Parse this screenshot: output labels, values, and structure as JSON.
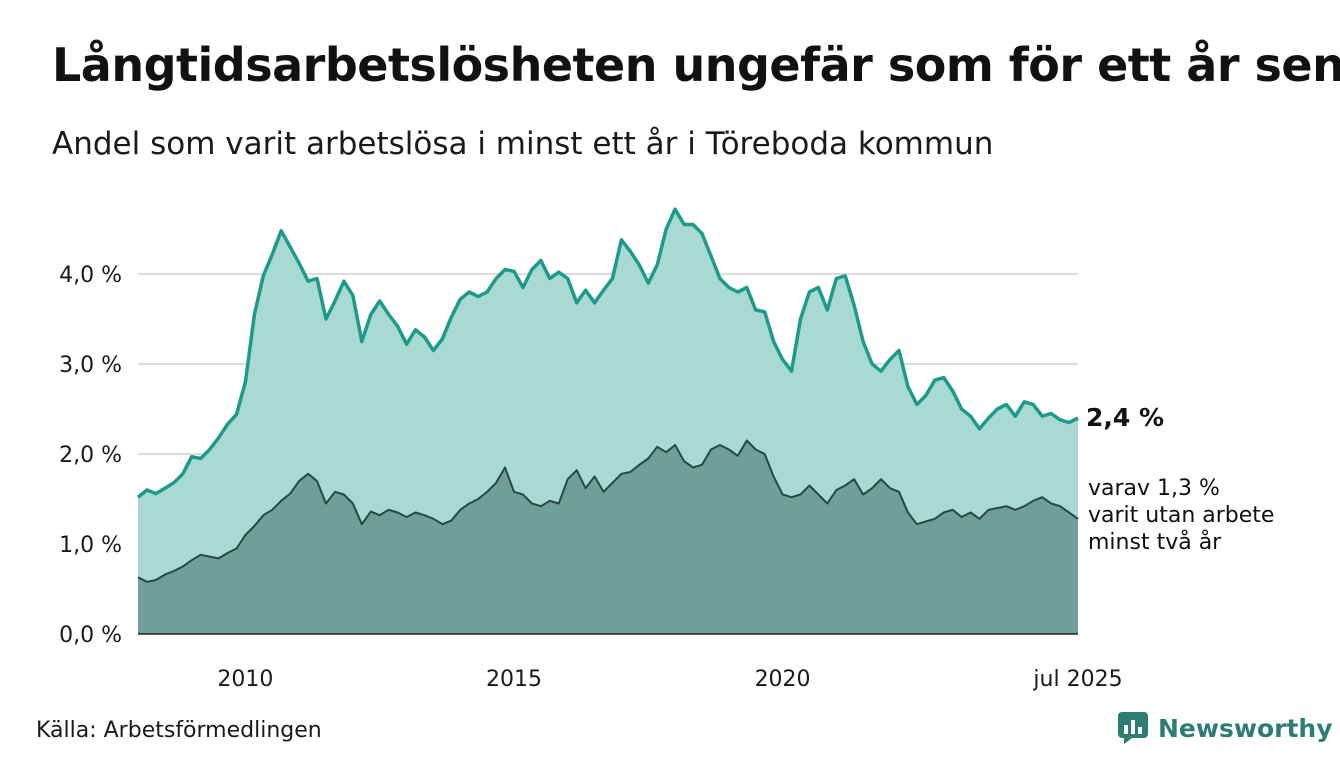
{
  "title": "Långtidsarbetslösheten ungefär som för ett år sen",
  "subtitle": "Andel som varit arbetslösa i minst ett år i Töreboda kommun",
  "source": "Källa: Arbetsförmedlingen",
  "brand": {
    "name": "Newsworthy",
    "icon": "bar-chart-logo-icon"
  },
  "colors": {
    "series1_fill": "#a8d9d2",
    "series1_line": "#1e9a8a",
    "series2_fill": "#6f9f97",
    "series2_line": "#254a44",
    "grid": "#dcdcdc",
    "brand": "#2e7d75"
  },
  "chart_data": {
    "type": "area",
    "title": "Långtidsarbetslösheten ungefär som för ett år sen",
    "subtitle": "Andel som varit arbetslösa i minst ett år i Töreboda kommun",
    "xlabel": "",
    "ylabel": "",
    "ylim": [
      0,
      4.8
    ],
    "xlim": [
      "2008-01",
      "2025-07"
    ],
    "y_ticks": [
      {
        "value": 0,
        "label": "0,0 %"
      },
      {
        "value": 1,
        "label": "1,0 %"
      },
      {
        "value": 2,
        "label": "2,0 %"
      },
      {
        "value": 3,
        "label": "3,0 %"
      },
      {
        "value": 4,
        "label": "4,0 %"
      }
    ],
    "x_ticks": [
      {
        "value": "2010-01",
        "label": "2010"
      },
      {
        "value": "2015-01",
        "label": "2015"
      },
      {
        "value": "2020-01",
        "label": "2020"
      },
      {
        "value": "2025-07",
        "label": "jul 2025"
      }
    ],
    "grid": true,
    "series": [
      {
        "name": "",
        "end_label": "2,4 %",
        "points": [
          [
            "2008-01",
            1.52
          ],
          [
            "2008-03",
            1.6
          ],
          [
            "2008-05",
            1.56
          ],
          [
            "2008-07",
            1.62
          ],
          [
            "2008-09",
            1.68
          ],
          [
            "2008-11",
            1.78
          ],
          [
            "2009-01",
            1.97
          ],
          [
            "2009-03",
            1.95
          ],
          [
            "2009-05",
            2.05
          ],
          [
            "2009-07",
            2.18
          ],
          [
            "2009-09",
            2.33
          ],
          [
            "2009-11",
            2.44
          ],
          [
            "2010-01",
            2.8
          ],
          [
            "2010-03",
            3.55
          ],
          [
            "2010-05",
            3.98
          ],
          [
            "2010-07",
            4.22
          ],
          [
            "2010-09",
            4.48
          ],
          [
            "2010-11",
            4.3
          ],
          [
            "2011-01",
            4.12
          ],
          [
            "2011-03",
            3.92
          ],
          [
            "2011-05",
            3.95
          ],
          [
            "2011-07",
            3.5
          ],
          [
            "2011-09",
            3.7
          ],
          [
            "2011-11",
            3.92
          ],
          [
            "2012-01",
            3.76
          ],
          [
            "2012-03",
            3.25
          ],
          [
            "2012-05",
            3.55
          ],
          [
            "2012-07",
            3.7
          ],
          [
            "2012-09",
            3.55
          ],
          [
            "2012-11",
            3.42
          ],
          [
            "2013-01",
            3.22
          ],
          [
            "2013-03",
            3.38
          ],
          [
            "2013-05",
            3.3
          ],
          [
            "2013-07",
            3.15
          ],
          [
            "2013-09",
            3.28
          ],
          [
            "2013-11",
            3.52
          ],
          [
            "2014-01",
            3.72
          ],
          [
            "2014-03",
            3.8
          ],
          [
            "2014-05",
            3.75
          ],
          [
            "2014-07",
            3.8
          ],
          [
            "2014-09",
            3.95
          ],
          [
            "2014-11",
            4.05
          ],
          [
            "2015-01",
            4.03
          ],
          [
            "2015-03",
            3.85
          ],
          [
            "2015-05",
            4.05
          ],
          [
            "2015-07",
            4.15
          ],
          [
            "2015-09",
            3.95
          ],
          [
            "2015-11",
            4.02
          ],
          [
            "2016-01",
            3.95
          ],
          [
            "2016-03",
            3.68
          ],
          [
            "2016-05",
            3.82
          ],
          [
            "2016-07",
            3.68
          ],
          [
            "2016-09",
            3.82
          ],
          [
            "2016-11",
            3.95
          ],
          [
            "2017-01",
            4.38
          ],
          [
            "2017-03",
            4.25
          ],
          [
            "2017-05",
            4.1
          ],
          [
            "2017-07",
            3.9
          ],
          [
            "2017-09",
            4.1
          ],
          [
            "2017-11",
            4.5
          ],
          [
            "2018-01",
            4.72
          ],
          [
            "2018-03",
            4.55
          ],
          [
            "2018-05",
            4.55
          ],
          [
            "2018-07",
            4.45
          ],
          [
            "2018-09",
            4.2
          ],
          [
            "2018-11",
            3.95
          ],
          [
            "2019-01",
            3.85
          ],
          [
            "2019-03",
            3.8
          ],
          [
            "2019-05",
            3.85
          ],
          [
            "2019-07",
            3.6
          ],
          [
            "2019-09",
            3.58
          ],
          [
            "2019-11",
            3.25
          ],
          [
            "2020-01",
            3.05
          ],
          [
            "2020-03",
            2.92
          ],
          [
            "2020-05",
            3.5
          ],
          [
            "2020-07",
            3.8
          ],
          [
            "2020-09",
            3.85
          ],
          [
            "2020-11",
            3.6
          ],
          [
            "2021-01",
            3.95
          ],
          [
            "2021-03",
            3.98
          ],
          [
            "2021-05",
            3.65
          ],
          [
            "2021-07",
            3.25
          ],
          [
            "2021-09",
            3.0
          ],
          [
            "2021-11",
            2.92
          ],
          [
            "2022-01",
            3.05
          ],
          [
            "2022-03",
            3.15
          ],
          [
            "2022-05",
            2.75
          ],
          [
            "2022-07",
            2.55
          ],
          [
            "2022-09",
            2.65
          ],
          [
            "2022-11",
            2.82
          ],
          [
            "2023-01",
            2.85
          ],
          [
            "2023-03",
            2.7
          ],
          [
            "2023-05",
            2.5
          ],
          [
            "2023-07",
            2.42
          ],
          [
            "2023-09",
            2.28
          ],
          [
            "2023-11",
            2.4
          ],
          [
            "2024-01",
            2.5
          ],
          [
            "2024-03",
            2.55
          ],
          [
            "2024-05",
            2.42
          ],
          [
            "2024-07",
            2.58
          ],
          [
            "2024-09",
            2.55
          ],
          [
            "2024-11",
            2.42
          ],
          [
            "2025-01",
            2.45
          ],
          [
            "2025-03",
            2.38
          ],
          [
            "2025-05",
            2.35
          ],
          [
            "2025-07",
            2.4
          ]
        ]
      },
      {
        "name": "",
        "end_label": [
          "varav 1,3 %",
          "varit utan arbete",
          "minst två år"
        ],
        "points": [
          [
            "2008-01",
            0.63
          ],
          [
            "2008-03",
            0.58
          ],
          [
            "2008-05",
            0.6
          ],
          [
            "2008-07",
            0.66
          ],
          [
            "2008-09",
            0.7
          ],
          [
            "2008-11",
            0.75
          ],
          [
            "2009-01",
            0.82
          ],
          [
            "2009-03",
            0.88
          ],
          [
            "2009-05",
            0.86
          ],
          [
            "2009-07",
            0.84
          ],
          [
            "2009-09",
            0.9
          ],
          [
            "2009-11",
            0.95
          ],
          [
            "2010-01",
            1.1
          ],
          [
            "2010-03",
            1.2
          ],
          [
            "2010-05",
            1.32
          ],
          [
            "2010-07",
            1.38
          ],
          [
            "2010-09",
            1.48
          ],
          [
            "2010-11",
            1.56
          ],
          [
            "2011-01",
            1.7
          ],
          [
            "2011-03",
            1.78
          ],
          [
            "2011-05",
            1.7
          ],
          [
            "2011-07",
            1.45
          ],
          [
            "2011-09",
            1.58
          ],
          [
            "2011-11",
            1.55
          ],
          [
            "2012-01",
            1.45
          ],
          [
            "2012-03",
            1.22
          ],
          [
            "2012-05",
            1.36
          ],
          [
            "2012-07",
            1.32
          ],
          [
            "2012-09",
            1.38
          ],
          [
            "2012-11",
            1.35
          ],
          [
            "2013-01",
            1.3
          ],
          [
            "2013-03",
            1.35
          ],
          [
            "2013-05",
            1.32
          ],
          [
            "2013-07",
            1.28
          ],
          [
            "2013-09",
            1.22
          ],
          [
            "2013-11",
            1.26
          ],
          [
            "2014-01",
            1.38
          ],
          [
            "2014-03",
            1.45
          ],
          [
            "2014-05",
            1.5
          ],
          [
            "2014-07",
            1.58
          ],
          [
            "2014-09",
            1.68
          ],
          [
            "2014-11",
            1.85
          ],
          [
            "2015-01",
            1.58
          ],
          [
            "2015-03",
            1.55
          ],
          [
            "2015-05",
            1.45
          ],
          [
            "2015-07",
            1.42
          ],
          [
            "2015-09",
            1.48
          ],
          [
            "2015-11",
            1.45
          ],
          [
            "2016-01",
            1.72
          ],
          [
            "2016-03",
            1.82
          ],
          [
            "2016-05",
            1.62
          ],
          [
            "2016-07",
            1.75
          ],
          [
            "2016-09",
            1.58
          ],
          [
            "2016-11",
            1.68
          ],
          [
            "2017-01",
            1.78
          ],
          [
            "2017-03",
            1.8
          ],
          [
            "2017-05",
            1.88
          ],
          [
            "2017-07",
            1.95
          ],
          [
            "2017-09",
            2.08
          ],
          [
            "2017-11",
            2.02
          ],
          [
            "2018-01",
            2.1
          ],
          [
            "2018-03",
            1.92
          ],
          [
            "2018-05",
            1.85
          ],
          [
            "2018-07",
            1.88
          ],
          [
            "2018-09",
            2.05
          ],
          [
            "2018-11",
            2.1
          ],
          [
            "2019-01",
            2.05
          ],
          [
            "2019-03",
            1.98
          ],
          [
            "2019-05",
            2.15
          ],
          [
            "2019-07",
            2.05
          ],
          [
            "2019-09",
            2.0
          ],
          [
            "2019-11",
            1.75
          ],
          [
            "2020-01",
            1.55
          ],
          [
            "2020-03",
            1.52
          ],
          [
            "2020-05",
            1.55
          ],
          [
            "2020-07",
            1.65
          ],
          [
            "2020-09",
            1.55
          ],
          [
            "2020-11",
            1.45
          ],
          [
            "2021-01",
            1.6
          ],
          [
            "2021-03",
            1.65
          ],
          [
            "2021-05",
            1.72
          ],
          [
            "2021-07",
            1.55
          ],
          [
            "2021-09",
            1.62
          ],
          [
            "2021-11",
            1.72
          ],
          [
            "2022-01",
            1.62
          ],
          [
            "2022-03",
            1.58
          ],
          [
            "2022-05",
            1.35
          ],
          [
            "2022-07",
            1.22
          ],
          [
            "2022-09",
            1.25
          ],
          [
            "2022-11",
            1.28
          ],
          [
            "2023-01",
            1.35
          ],
          [
            "2023-03",
            1.38
          ],
          [
            "2023-05",
            1.3
          ],
          [
            "2023-07",
            1.35
          ],
          [
            "2023-09",
            1.28
          ],
          [
            "2023-11",
            1.38
          ],
          [
            "2024-01",
            1.4
          ],
          [
            "2024-03",
            1.42
          ],
          [
            "2024-05",
            1.38
          ],
          [
            "2024-07",
            1.42
          ],
          [
            "2024-09",
            1.48
          ],
          [
            "2024-11",
            1.52
          ],
          [
            "2025-01",
            1.45
          ],
          [
            "2025-03",
            1.42
          ],
          [
            "2025-05",
            1.35
          ],
          [
            "2025-07",
            1.28
          ]
        ]
      }
    ]
  }
}
